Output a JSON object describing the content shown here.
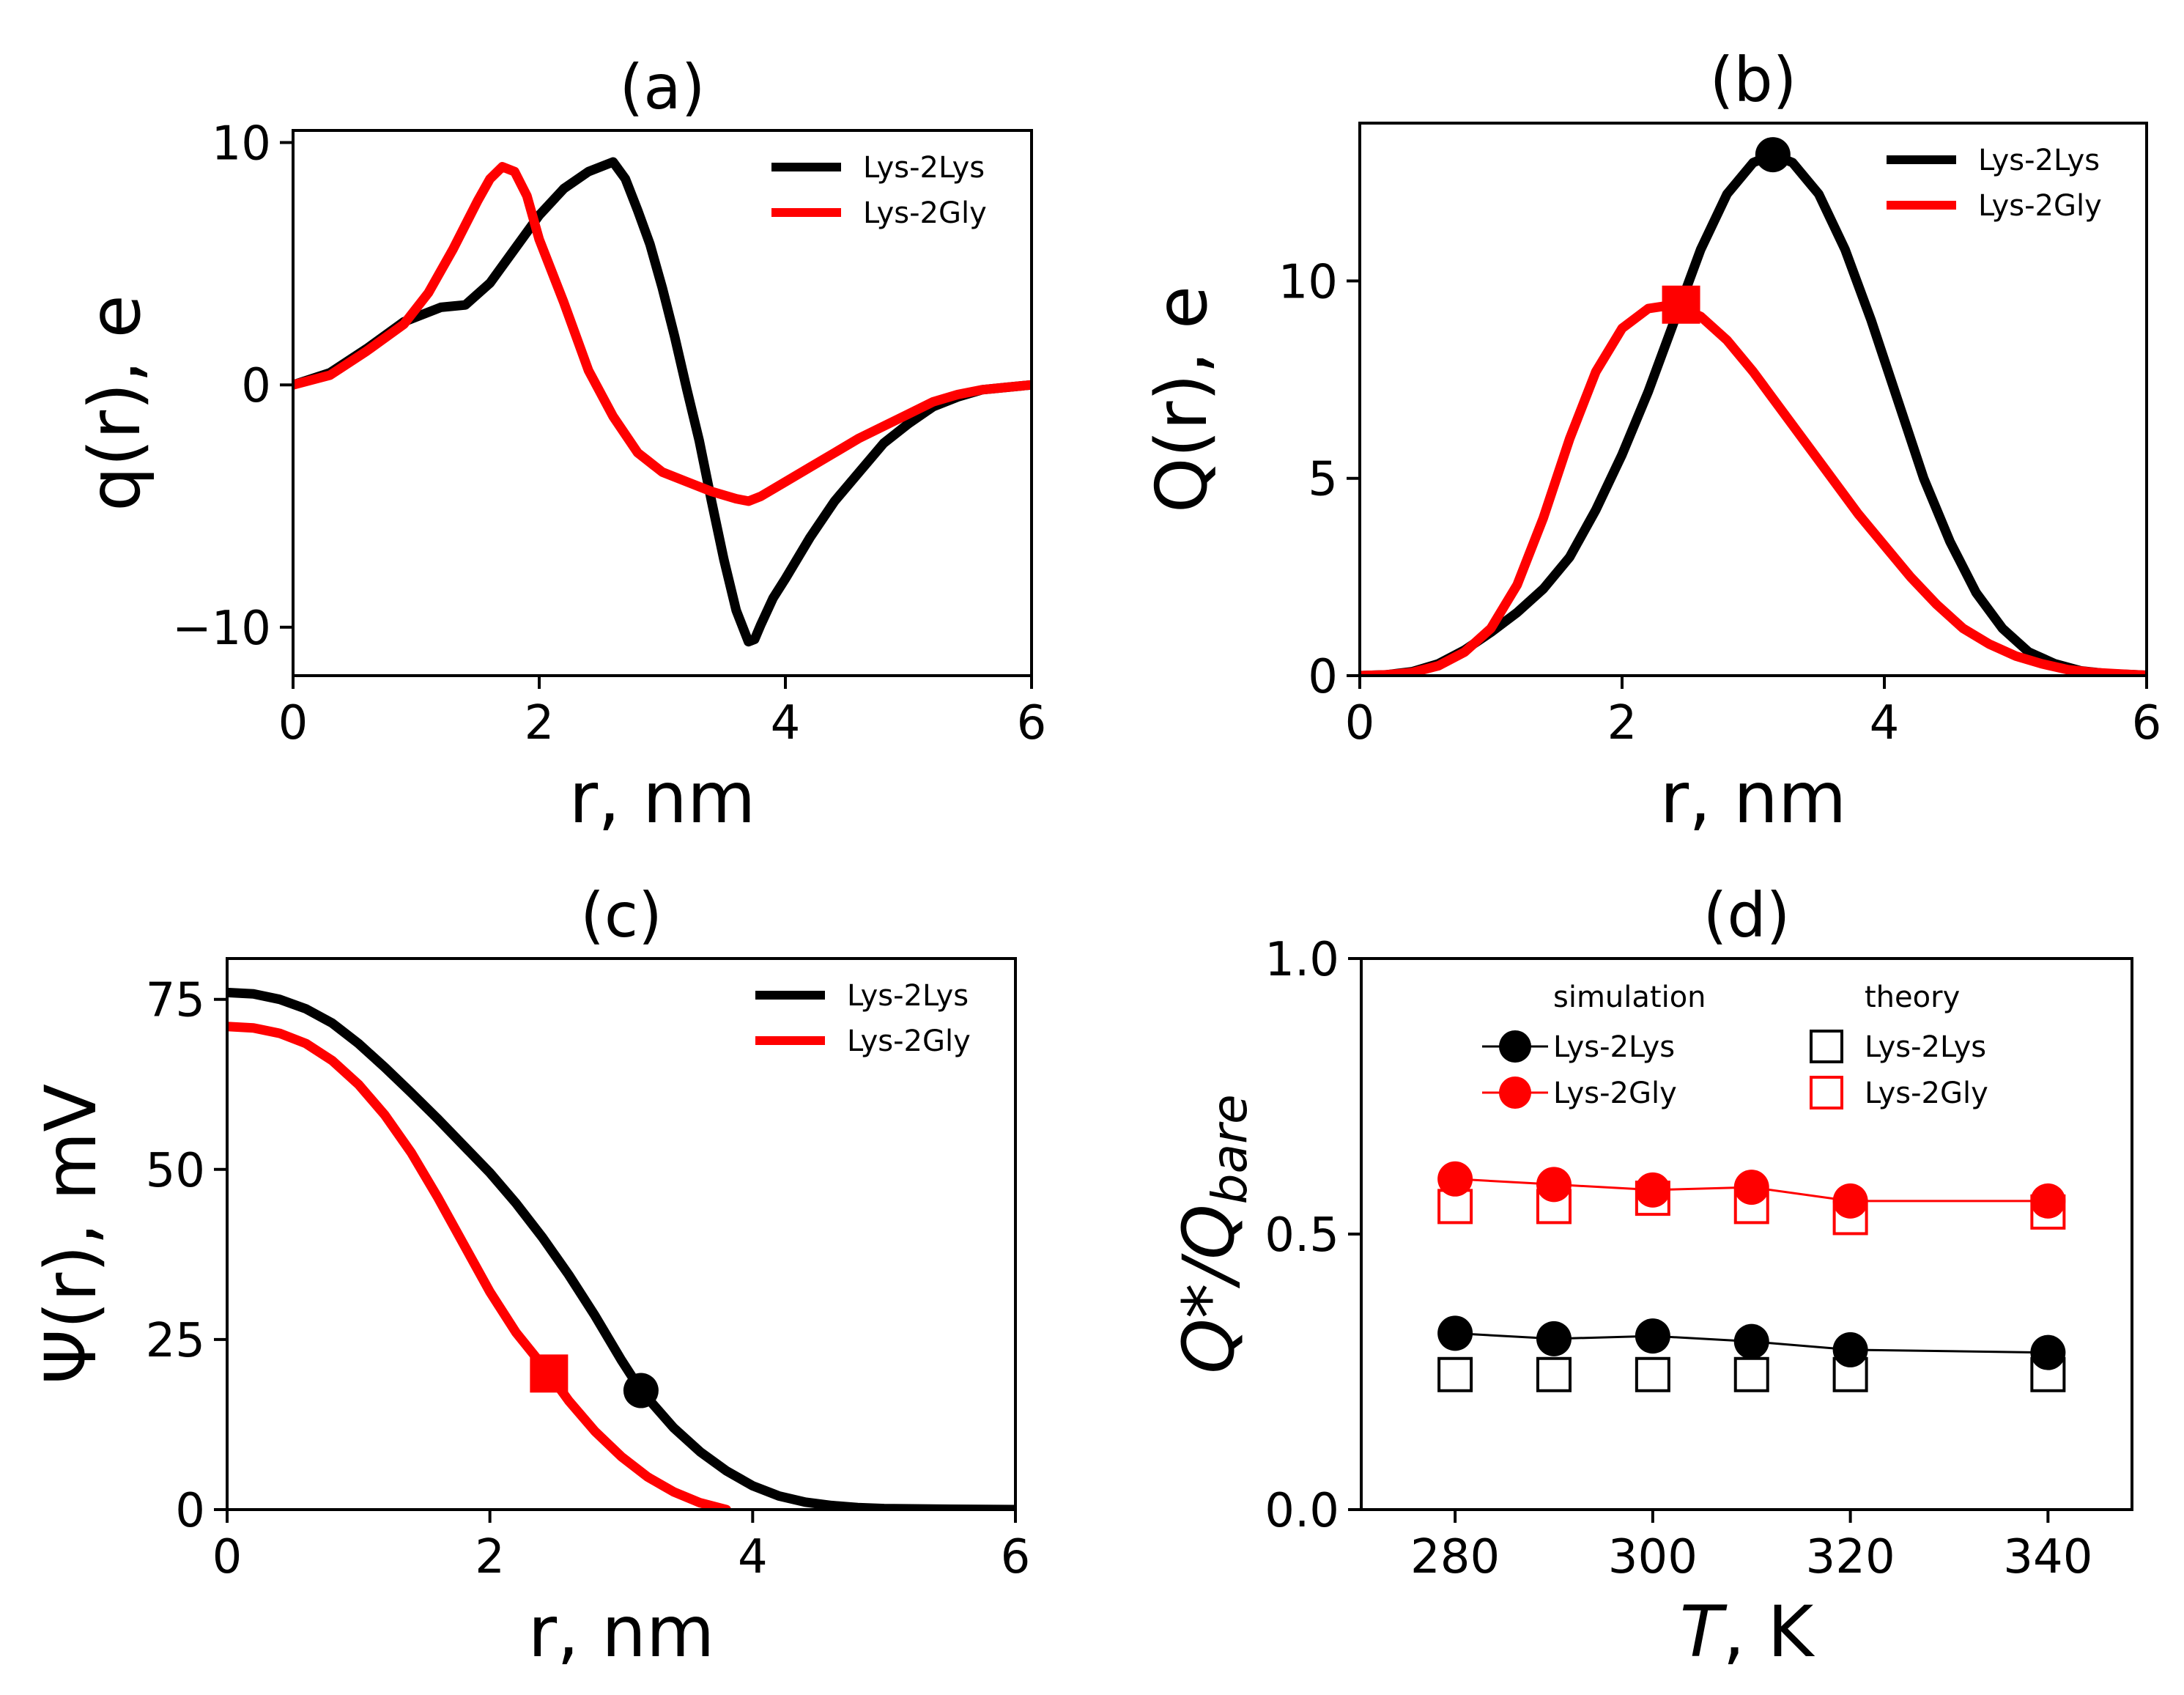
{
  "colors": {
    "lys2lys": "#000000",
    "lys2gly": "#ff0000"
  },
  "chart_data": [
    {
      "id": "a",
      "type": "line",
      "title": "(a)",
      "xlabel": "r, nm",
      "ylabel": "q(r), e",
      "xlim": [
        0,
        6
      ],
      "ylim": [
        -12,
        10.5
      ],
      "xticks": [
        0,
        2,
        4,
        6
      ],
      "xtick_labels": [
        "0",
        "2",
        "4",
        "6"
      ],
      "yticks": [
        -10,
        0,
        10
      ],
      "ytick_labels": [
        "−10",
        "0",
        "10"
      ],
      "legend": [
        "Lys-2Lys",
        "Lys-2Gly"
      ],
      "legend_position": "top-right",
      "series": [
        {
          "name": "Lys-2Lys",
          "color": "#000000",
          "x": [
            0,
            0.3,
            0.6,
            0.9,
            1.0,
            1.2,
            1.4,
            1.6,
            1.8,
            2.0,
            2.2,
            2.4,
            2.6,
            2.7,
            2.8,
            2.9,
            3.0,
            3.1,
            3.2,
            3.3,
            3.4,
            3.5,
            3.6,
            3.7,
            3.75,
            3.8,
            3.9,
            4.0,
            4.2,
            4.4,
            4.6,
            4.8,
            5.0,
            5.2,
            5.4,
            5.6,
            5.8,
            6.0
          ],
          "y": [
            0,
            0.5,
            1.5,
            2.6,
            2.8,
            3.2,
            3.3,
            4.2,
            5.6,
            7.0,
            8.1,
            8.8,
            9.2,
            8.5,
            7.2,
            5.8,
            4.0,
            2.0,
            -0.2,
            -2.3,
            -4.8,
            -7.2,
            -9.3,
            -10.6,
            -10.5,
            -9.9,
            -8.8,
            -8.0,
            -6.3,
            -4.8,
            -3.6,
            -2.4,
            -1.6,
            -0.9,
            -0.5,
            -0.2,
            -0.1,
            0
          ]
        },
        {
          "name": "Lys-2Gly",
          "color": "#ff0000",
          "x": [
            0,
            0.3,
            0.6,
            0.9,
            1.1,
            1.3,
            1.5,
            1.6,
            1.7,
            1.8,
            1.9,
            2.0,
            2.2,
            2.4,
            2.6,
            2.8,
            3.0,
            3.2,
            3.4,
            3.6,
            3.7,
            3.8,
            4.0,
            4.2,
            4.4,
            4.6,
            4.8,
            5.0,
            5.2,
            5.4,
            5.6,
            5.8,
            6.0
          ],
          "y": [
            0,
            0.4,
            1.4,
            2.5,
            3.8,
            5.6,
            7.6,
            8.5,
            9.0,
            8.8,
            7.8,
            6.0,
            3.4,
            0.6,
            -1.3,
            -2.8,
            -3.6,
            -4.0,
            -4.4,
            -4.7,
            -4.8,
            -4.6,
            -4.0,
            -3.4,
            -2.8,
            -2.2,
            -1.7,
            -1.2,
            -0.7,
            -0.4,
            -0.2,
            -0.1,
            0
          ]
        }
      ]
    },
    {
      "id": "b",
      "type": "line",
      "title": "(b)",
      "xlabel": "r, nm",
      "ylabel": "Q(r), e",
      "xlim": [
        0,
        6
      ],
      "ylim": [
        0,
        14
      ],
      "xticks": [
        0,
        2,
        4,
        6
      ],
      "xtick_labels": [
        "0",
        "2",
        "4",
        "6"
      ],
      "yticks": [
        0,
        5,
        10
      ],
      "ytick_labels": [
        "0",
        "5",
        "10"
      ],
      "legend": [
        "Lys-2Lys",
        "Lys-2Gly"
      ],
      "legend_position": "top-right",
      "series": [
        {
          "name": "Lys-2Lys",
          "color": "#000000",
          "x": [
            0,
            0.2,
            0.4,
            0.6,
            0.8,
            1.0,
            1.2,
            1.4,
            1.6,
            1.8,
            2.0,
            2.2,
            2.4,
            2.6,
            2.8,
            3.0,
            3.15,
            3.3,
            3.5,
            3.7,
            3.9,
            4.1,
            4.3,
            4.5,
            4.7,
            4.9,
            5.1,
            5.3,
            5.5,
            5.7,
            6.0
          ],
          "y": [
            0,
            0.02,
            0.1,
            0.3,
            0.65,
            1.1,
            1.6,
            2.2,
            3.0,
            4.2,
            5.6,
            7.2,
            9.0,
            10.8,
            12.2,
            13.0,
            13.2,
            13.0,
            12.2,
            10.8,
            9.0,
            7.0,
            5.0,
            3.4,
            2.1,
            1.2,
            0.6,
            0.3,
            0.12,
            0.05,
            0.01
          ],
          "marker": {
            "x": 3.15,
            "y": 13.2,
            "shape": "circle"
          }
        },
        {
          "name": "Lys-2Gly",
          "color": "#ff0000",
          "x": [
            0,
            0.2,
            0.4,
            0.6,
            0.8,
            1.0,
            1.2,
            1.4,
            1.6,
            1.8,
            2.0,
            2.2,
            2.4,
            2.6,
            2.8,
            3.0,
            3.2,
            3.4,
            3.6,
            3.8,
            4.0,
            4.2,
            4.4,
            4.6,
            4.8,
            5.0,
            5.2,
            5.4,
            5.6,
            5.8,
            6.0
          ],
          "y": [
            0,
            0.02,
            0.08,
            0.25,
            0.6,
            1.2,
            2.3,
            4.0,
            6.0,
            7.7,
            8.8,
            9.3,
            9.4,
            9.1,
            8.5,
            7.7,
            6.8,
            5.9,
            5.0,
            4.1,
            3.3,
            2.5,
            1.8,
            1.2,
            0.8,
            0.5,
            0.3,
            0.15,
            0.08,
            0.04,
            0.01
          ],
          "marker": {
            "x": 2.45,
            "y": 9.4,
            "shape": "square"
          }
        }
      ]
    },
    {
      "id": "c",
      "type": "line",
      "title": "(c)",
      "xlabel": "r, nm",
      "ylabel": "Ψ(r), mV",
      "xlim": [
        0,
        6
      ],
      "ylim": [
        0,
        81
      ],
      "xticks": [
        0,
        2,
        4,
        6
      ],
      "xtick_labels": [
        "0",
        "2",
        "4",
        "6"
      ],
      "yticks": [
        0,
        25,
        50,
        75
      ],
      "ytick_labels": [
        "0",
        "25",
        "50",
        "75"
      ],
      "legend": [
        "Lys-2Lys",
        "Lys-2Gly"
      ],
      "legend_position": "top-right",
      "series": [
        {
          "name": "Lys-2Lys",
          "color": "#000000",
          "x": [
            0,
            0.2,
            0.4,
            0.6,
            0.8,
            1.0,
            1.2,
            1.4,
            1.6,
            1.8,
            2.0,
            2.2,
            2.4,
            2.6,
            2.8,
            3.0,
            3.15,
            3.4,
            3.6,
            3.8,
            4.0,
            4.2,
            4.4,
            4.6,
            4.8,
            5.0,
            5.5,
            6.0
          ],
          "y": [
            76,
            75.8,
            75,
            73.6,
            71.5,
            68.5,
            65,
            61.3,
            57.5,
            53.5,
            49.5,
            45,
            40,
            34.5,
            28.5,
            22,
            17.5,
            12,
            8.5,
            5.7,
            3.5,
            2.0,
            1.1,
            0.6,
            0.3,
            0.15,
            0.05,
            0
          ]
        },
        {
          "name": "Lys-2Gly",
          "color": "#ff0000",
          "x": [
            0,
            0.2,
            0.4,
            0.6,
            0.8,
            1.0,
            1.2,
            1.4,
            1.6,
            1.8,
            2.0,
            2.2,
            2.45,
            2.6,
            2.8,
            3.0,
            3.2,
            3.4,
            3.6,
            3.8
          ],
          "y": [
            71,
            70.8,
            70,
            68.5,
            66,
            62.5,
            58,
            52.5,
            46,
            39,
            32,
            26,
            20,
            16,
            11.5,
            7.8,
            4.8,
            2.6,
            1.0,
            0
          ]
        }
      ],
      "markers": [
        {
          "series": "Lys-2Lys",
          "x": 3.15,
          "y": 17.5,
          "shape": "circle"
        },
        {
          "series": "Lys-2Gly",
          "x": 2.45,
          "y": 20,
          "shape": "square"
        }
      ]
    },
    {
      "id": "d",
      "type": "scatter",
      "title": "(d)",
      "xlabel": "T, K",
      "ylabel": "Q*/Qbare",
      "xlim": [
        270.5,
        348.5
      ],
      "ylim": [
        0,
        1
      ],
      "xticks": [
        280,
        300,
        320,
        340
      ],
      "xtick_labels": [
        "280",
        "300",
        "320",
        "340"
      ],
      "yticks": [
        0,
        0.5,
        1
      ],
      "ytick_labels": [
        "0.0",
        "0.5",
        "1.0"
      ],
      "legend_groups": [
        "simulation",
        "theory"
      ],
      "legend": [
        "Lys-2Lys",
        "Lys-2Gly",
        "Lys-2Lys",
        "Lys-2Gly"
      ],
      "legend_position": "top",
      "series": [
        {
          "name": "Lys-2Lys",
          "group": "simulation",
          "color": "#000000",
          "marker": "filled-circle",
          "line": true,
          "x": [
            280,
            290,
            300,
            310,
            320,
            340
          ],
          "y": [
            0.32,
            0.31,
            0.315,
            0.305,
            0.29,
            0.285
          ]
        },
        {
          "name": "Lys-2Gly",
          "group": "simulation",
          "color": "#ff0000",
          "marker": "filled-circle",
          "line": true,
          "x": [
            280,
            290,
            300,
            310,
            320,
            340
          ],
          "y": [
            0.6,
            0.59,
            0.58,
            0.585,
            0.56,
            0.56
          ]
        },
        {
          "name": "Lys-2Lys",
          "group": "theory",
          "color": "#000000",
          "marker": "open-square",
          "line": false,
          "x": [
            280,
            290,
            300,
            310,
            320,
            340
          ],
          "y": [
            0.245,
            0.245,
            0.245,
            0.245,
            0.245,
            0.245
          ]
        },
        {
          "name": "Lys-2Gly",
          "group": "theory",
          "color": "#ff0000",
          "marker": "open-square",
          "line": false,
          "x": [
            280,
            290,
            300,
            310,
            320,
            340
          ],
          "y": [
            0.55,
            0.55,
            0.565,
            0.55,
            0.53,
            0.54
          ]
        }
      ]
    }
  ]
}
